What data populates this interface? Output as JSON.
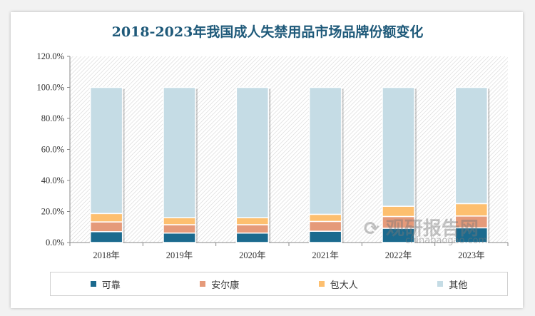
{
  "chart_data": {
    "type": "bar",
    "stacked": true,
    "title": "2018-2023年我国成人失禁用品市场品牌份额变化",
    "categories": [
      "2018年",
      "2019年",
      "2020年",
      "2021年",
      "2022年",
      "2023年"
    ],
    "series": [
      {
        "name": "可靠",
        "color": "#1b6a8e",
        "values": [
          7.0,
          6.1,
          6.1,
          7.3,
          9.2,
          9.5
        ]
      },
      {
        "name": "安尔康",
        "color": "#e59a7a",
        "values": [
          6.3,
          5.4,
          5.4,
          6.3,
          7.6,
          7.6
        ]
      },
      {
        "name": "包大人",
        "color": "#fdbf6f",
        "values": [
          5.4,
          4.5,
          4.5,
          4.6,
          6.6,
          8.0
        ]
      },
      {
        "name": "其他",
        "color": "#c5dce5",
        "values": [
          81.3,
          84.0,
          84.0,
          81.8,
          76.6,
          74.9
        ]
      }
    ],
    "yticks": [
      "0.0%",
      "20.0%",
      "40.0%",
      "60.0%",
      "80.0%",
      "100.0%",
      "120.0%"
    ],
    "ylim": [
      0,
      120
    ],
    "legend_position": "bottom",
    "grid": false
  },
  "watermark": {
    "name": "观研报告网",
    "url_text": "chinabaogao.com"
  }
}
